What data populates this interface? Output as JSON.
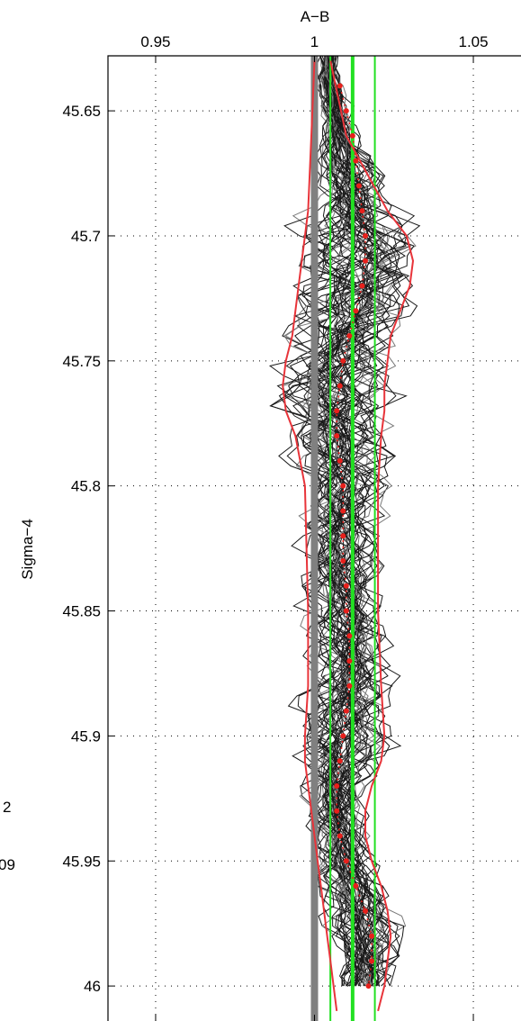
{
  "chart_data": {
    "type": "line",
    "title": "A−B",
    "xlabel": "A−B",
    "ylabel": "Sigma−4",
    "xlim": [
      0.935,
      1.065
    ],
    "ylim": [
      46.014,
      45.628
    ],
    "y_reversed": true,
    "x_axis_position": "top",
    "x_ticks": [
      0.95,
      1.0,
      1.05
    ],
    "x_tick_labels": [
      "0.95",
      "1",
      "1.05"
    ],
    "y_ticks": [
      45.65,
      45.7,
      45.75,
      45.8,
      45.85,
      45.9,
      45.95,
      46.0
    ],
    "y_tick_labels": [
      "45.65",
      "45.7",
      "45.75",
      "45.8",
      "45.85",
      "45.9",
      "45.95",
      "46"
    ],
    "grid": true,
    "side_text": [
      "2",
      "09"
    ],
    "colors": {
      "ensemble": "#1a1a1a",
      "ensemble_light": "#7a7a7a",
      "reference": "#808080",
      "envelope": "#e8343a",
      "markers": "#e8201c",
      "bounds": "#22e022"
    },
    "reference_line": {
      "name": "reference",
      "x": 1.0
    },
    "vertical_lines": [
      {
        "name": "lower",
        "x": 1.005
      },
      {
        "name": "center",
        "x": 1.012
      },
      {
        "name": "upper",
        "x": 1.019
      }
    ],
    "ensemble": {
      "member_count": 60
    },
    "envelope": {
      "y": [
        45.63,
        45.66,
        45.69,
        45.7,
        45.71,
        45.72,
        45.73,
        45.74,
        45.75,
        45.76,
        45.77,
        45.78,
        45.8,
        45.85,
        45.88,
        45.9,
        45.91,
        45.92,
        45.93,
        45.94,
        45.95,
        45.96,
        45.97,
        45.98,
        45.99,
        46.0,
        46.01
      ],
      "lower": [
        1.0,
        0.999,
        0.998,
        0.997,
        0.996,
        0.995,
        0.994,
        0.993,
        0.991,
        0.99,
        0.991,
        0.994,
        0.997,
        0.998,
        0.998,
        0.997,
        0.997,
        0.998,
        0.999,
        1.0,
        1.001,
        1.002,
        1.003,
        1.004,
        1.005,
        1.006,
        1.007
      ],
      "upper": [
        1.005,
        1.01,
        1.023,
        1.029,
        1.031,
        1.03,
        1.027,
        1.024,
        1.023,
        1.022,
        1.022,
        1.021,
        1.02,
        1.02,
        1.021,
        1.022,
        1.021,
        1.018,
        1.016,
        1.016,
        1.018,
        1.021,
        1.023,
        1.024,
        1.023,
        1.022,
        1.02
      ]
    },
    "markers": {
      "y": [
        45.64,
        45.65,
        45.66,
        45.67,
        45.68,
        45.69,
        45.7,
        45.71,
        45.72,
        45.73,
        45.74,
        45.75,
        45.76,
        45.77,
        45.78,
        45.79,
        45.8,
        45.81,
        45.82,
        45.83,
        45.84,
        45.85,
        45.86,
        45.87,
        45.88,
        45.89,
        45.9,
        45.91,
        45.92,
        45.93,
        45.94,
        45.95,
        45.96,
        45.97,
        45.98,
        45.99,
        46.0
      ],
      "x": [
        1.008,
        1.01,
        1.012,
        1.013,
        1.014,
        1.015,
        1.016,
        1.016,
        1.015,
        1.013,
        1.011,
        1.009,
        1.008,
        1.007,
        1.007,
        1.008,
        1.009,
        1.009,
        1.009,
        1.009,
        1.01,
        1.01,
        1.011,
        1.011,
        1.011,
        1.01,
        1.009,
        1.008,
        1.007,
        1.007,
        1.008,
        1.01,
        1.013,
        1.016,
        1.018,
        1.018,
        1.017
      ]
    }
  }
}
